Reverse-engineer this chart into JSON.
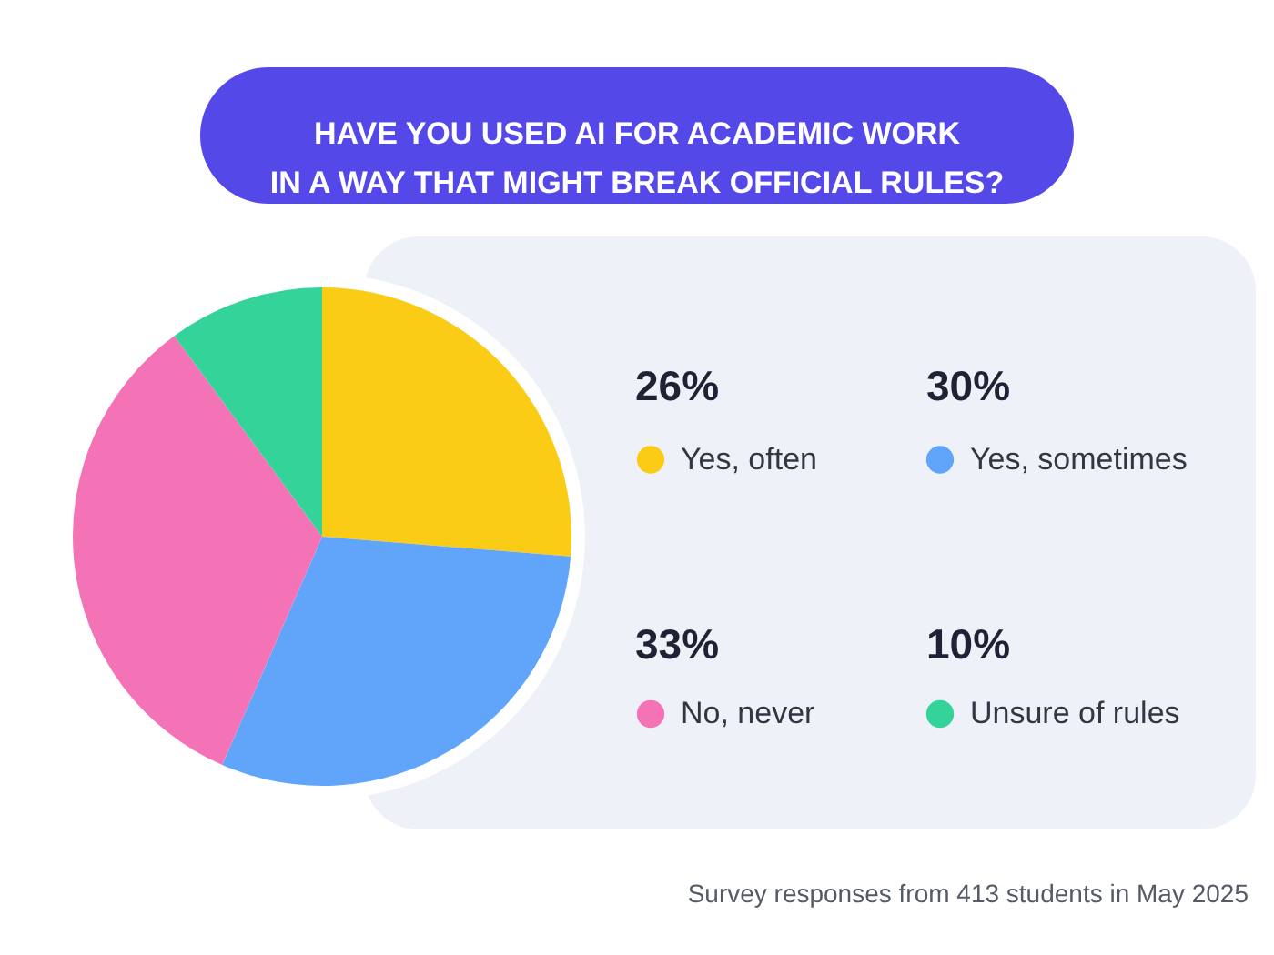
{
  "chart_data": {
    "type": "pie",
    "title": "HAVE YOU USED AI FOR ACADEMIC WORK\nIN A WAY THAT MIGHT BREAK OFFICIAL RULES?",
    "categories": [
      "Yes, often",
      "Yes, sometimes",
      "No, never",
      "Unsure of rules"
    ],
    "values": [
      26,
      30,
      33,
      10
    ],
    "value_labels": [
      "26%",
      "30%",
      "33%",
      "10%"
    ],
    "colors": [
      "#facc15",
      "#60a5fa",
      "#f472b6",
      "#34d399"
    ],
    "legend": "right",
    "annotations": [
      "Survey responses from 413 students in May 2025"
    ]
  }
}
